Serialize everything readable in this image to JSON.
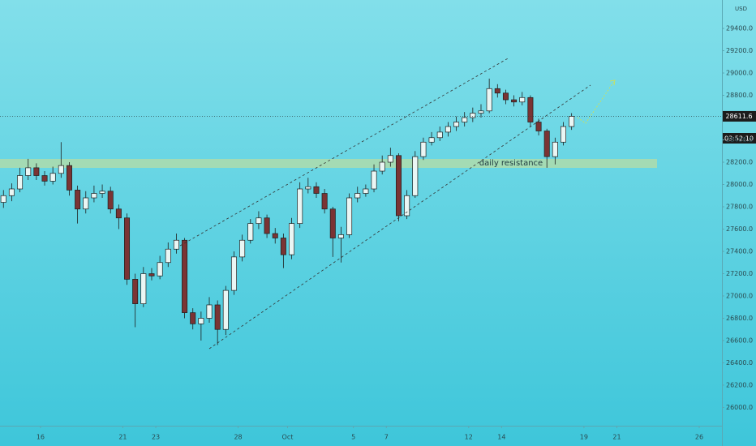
{
  "chart_data": {
    "type": "candlestick",
    "currency": "USD",
    "countdown": "03:52:10",
    "annotation": "daily resistance",
    "up_color": "#eaf6f4",
    "down_color": "#7a3434",
    "x": [
      -2.25,
      -1.75,
      -1.25,
      -0.75,
      -0.25,
      0.25,
      0.75,
      1.25,
      1.75,
      2.25,
      2.75,
      3.25,
      3.75,
      4.25,
      4.75,
      5.25,
      5.75,
      6.25,
      6.75,
      7.25,
      7.75,
      8.25,
      8.75,
      9.25,
      9.75,
      10.25,
      10.75,
      11.25,
      11.75,
      12.25,
      12.75,
      13.25,
      13.75,
      14.25,
      14.75,
      15.25,
      15.75,
      16.25,
      16.75,
      17.25,
      17.75,
      18.25,
      18.75,
      19.25,
      19.75,
      20.25,
      20.75,
      21.25,
      21.75,
      22.25,
      22.75,
      23.25,
      23.75,
      24.25,
      24.75,
      25.25,
      25.75,
      26.25,
      26.75,
      27.25,
      27.75,
      28.25,
      28.75,
      29.25,
      29.75,
      30.25,
      30.75,
      31.25,
      31.75,
      32.25
    ],
    "open": [
      27840,
      27900,
      27960,
      28080,
      28150,
      28080,
      28030,
      28100,
      28170,
      27950,
      27780,
      27880,
      27920,
      27940,
      27780,
      27700,
      27150,
      26930,
      27200,
      27180,
      27300,
      27420,
      27500,
      26850,
      26750,
      26800,
      26920,
      26700,
      27050,
      27350,
      27500,
      27650,
      27700,
      27560,
      27520,
      27370,
      27650,
      27960,
      27980,
      27920,
      27780,
      27520,
      27550,
      27880,
      27920,
      27960,
      28120,
      28200,
      28260,
      27720,
      27900,
      28250,
      28380,
      28420,
      28470,
      28520,
      28560,
      28600,
      28640,
      28660,
      28860,
      28820,
      28760,
      28740,
      28780,
      28560,
      28480,
      28250,
      28380,
      28520
    ],
    "high": [
      27950,
      28010,
      28150,
      28230,
      28190,
      28120,
      28160,
      28380,
      28200,
      27990,
      27940,
      27990,
      28000,
      27980,
      27820,
      27740,
      27200,
      27260,
      27250,
      27360,
      27480,
      27560,
      27520,
      26890,
      26860,
      26990,
      26960,
      27090,
      27400,
      27550,
      27690,
      27760,
      27730,
      27610,
      27560,
      27700,
      28020,
      28060,
      28020,
      27960,
      27800,
      27620,
      27920,
      27980,
      28000,
      28180,
      28260,
      28330,
      28280,
      27950,
      28300,
      28420,
      28470,
      28520,
      28560,
      28610,
      28650,
      28690,
      28720,
      28950,
      28900,
      28850,
      28800,
      28830,
      28800,
      28590,
      28500,
      28420,
      28560,
      28640
    ],
    "low": [
      27790,
      27850,
      27930,
      28040,
      28040,
      27990,
      28000,
      28060,
      27900,
      27650,
      27740,
      27840,
      27880,
      27740,
      27600,
      27100,
      26720,
      26900,
      27140,
      27150,
      27260,
      27380,
      26800,
      26700,
      26600,
      26760,
      26560,
      26650,
      27010,
      27310,
      27470,
      27600,
      27520,
      27470,
      27250,
      27330,
      27610,
      27920,
      27880,
      27740,
      27350,
      27300,
      27520,
      27840,
      27890,
      27930,
      28090,
      28160,
      27670,
      27690,
      27880,
      28220,
      28350,
      28390,
      28430,
      28480,
      28520,
      28560,
      28600,
      28640,
      28780,
      28720,
      28700,
      28710,
      28520,
      28440,
      28150,
      28180,
      28350,
      28490
    ],
    "close": [
      27900,
      27960,
      28080,
      28150,
      28080,
      28030,
      28100,
      28170,
      27950,
      27780,
      27880,
      27920,
      27940,
      27780,
      27700,
      27150,
      26930,
      27200,
      27180,
      27300,
      27420,
      27500,
      26850,
      26750,
      26800,
      26920,
      26700,
      27050,
      27350,
      27500,
      27650,
      27700,
      27560,
      27520,
      27370,
      27650,
      27960,
      27980,
      27920,
      27780,
      27520,
      27550,
      27880,
      27920,
      27960,
      28120,
      28200,
      28260,
      27720,
      27900,
      28250,
      28380,
      28420,
      28470,
      28520,
      28560,
      28600,
      28640,
      28660,
      28860,
      28820,
      28760,
      28740,
      28780,
      28560,
      28480,
      28250,
      28380,
      28520,
      28611.6
    ],
    "xlim": [
      -2.46,
      41.38
    ],
    "ylim": [
      25836,
      29655
    ],
    "xticks": [
      {
        "value": 0,
        "label": "16"
      },
      {
        "value": 5,
        "label": "21"
      },
      {
        "value": 7,
        "label": "23"
      },
      {
        "value": 12,
        "label": "28"
      },
      {
        "value": 15,
        "label": "Oct"
      },
      {
        "value": 19,
        "label": "5"
      },
      {
        "value": 21,
        "label": "7"
      },
      {
        "value": 26,
        "label": "12"
      },
      {
        "value": 28,
        "label": "14"
      },
      {
        "value": 33,
        "label": "19"
      },
      {
        "value": 35,
        "label": "21"
      },
      {
        "value": 40,
        "label": "26"
      }
    ],
    "yticks": [
      {
        "value": 26000,
        "label": "26000.0"
      },
      {
        "value": 26200,
        "label": "26200.0"
      },
      {
        "value": 26400,
        "label": "26400.0"
      },
      {
        "value": 26600,
        "label": "26600.0"
      },
      {
        "value": 26800,
        "label": "26800.0"
      },
      {
        "value": 27000,
        "label": "27000.0"
      },
      {
        "value": 27200,
        "label": "27200.0"
      },
      {
        "value": 27400,
        "label": "27400.0"
      },
      {
        "value": 27600,
        "label": "27600.0"
      },
      {
        "value": 27800,
        "label": "27800.0"
      },
      {
        "value": 28000,
        "label": "28000.0"
      },
      {
        "value": 28200,
        "label": "28200.0"
      },
      {
        "value": 28400,
        "label": "28400.0"
      },
      {
        "value": 28600,
        "label": "28600.0"
      },
      {
        "value": 28800,
        "label": "28800.0"
      },
      {
        "value": 29000,
        "label": "29000.0"
      },
      {
        "value": 29200,
        "label": "29200.0"
      },
      {
        "value": 29400,
        "label": "29400.0"
      }
    ]
  }
}
